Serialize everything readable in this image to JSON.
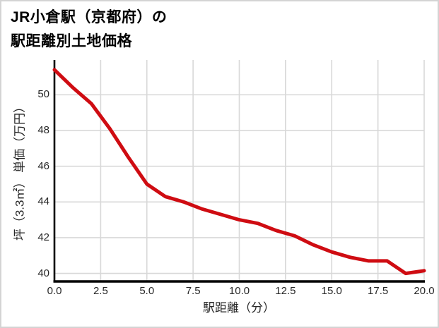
{
  "title": {
    "line1": "JR小倉駅（京都府）の",
    "line2": "駅距離別土地価格"
  },
  "chart_data": {
    "type": "line",
    "title": "JR小倉駅（京都府）の駅距離別土地価格",
    "xlabel": "駅距離（分）",
    "ylabel": "坪（3.3㎡） 単価（万円）",
    "x": [
      0,
      1,
      2,
      3,
      4,
      5,
      6,
      7,
      8,
      9,
      10,
      11,
      12,
      13,
      14,
      15,
      16,
      17,
      18,
      19,
      20
    ],
    "values": [
      51.4,
      50.4,
      49.5,
      48.1,
      46.5,
      45.0,
      44.3,
      44.0,
      43.6,
      43.3,
      43.0,
      42.8,
      42.4,
      42.1,
      41.6,
      41.2,
      40.9,
      40.7,
      40.7,
      40.0,
      40.15
    ],
    "series_name": "坪単価（万円）",
    "x_ticks": [
      0,
      2.5,
      5,
      7.5,
      10,
      12.5,
      15,
      17.5,
      20
    ],
    "x_tick_labels": [
      "0.0",
      "2.5",
      "5.0",
      "7.5",
      "10.0",
      "12.5",
      "15.0",
      "17.5",
      "20.0"
    ],
    "y_ticks": [
      40,
      42,
      44,
      46,
      48,
      50
    ],
    "y_tick_labels": [
      "40",
      "42",
      "44",
      "46",
      "48",
      "50"
    ],
    "xlim": [
      0,
      20
    ],
    "ylim": [
      39.55,
      51.95
    ],
    "grid": true,
    "legend": "none",
    "line_color": "#cf0c12",
    "grid_color": "#d8d8d8",
    "spine_color": "#000000",
    "text_color": "#262626"
  }
}
